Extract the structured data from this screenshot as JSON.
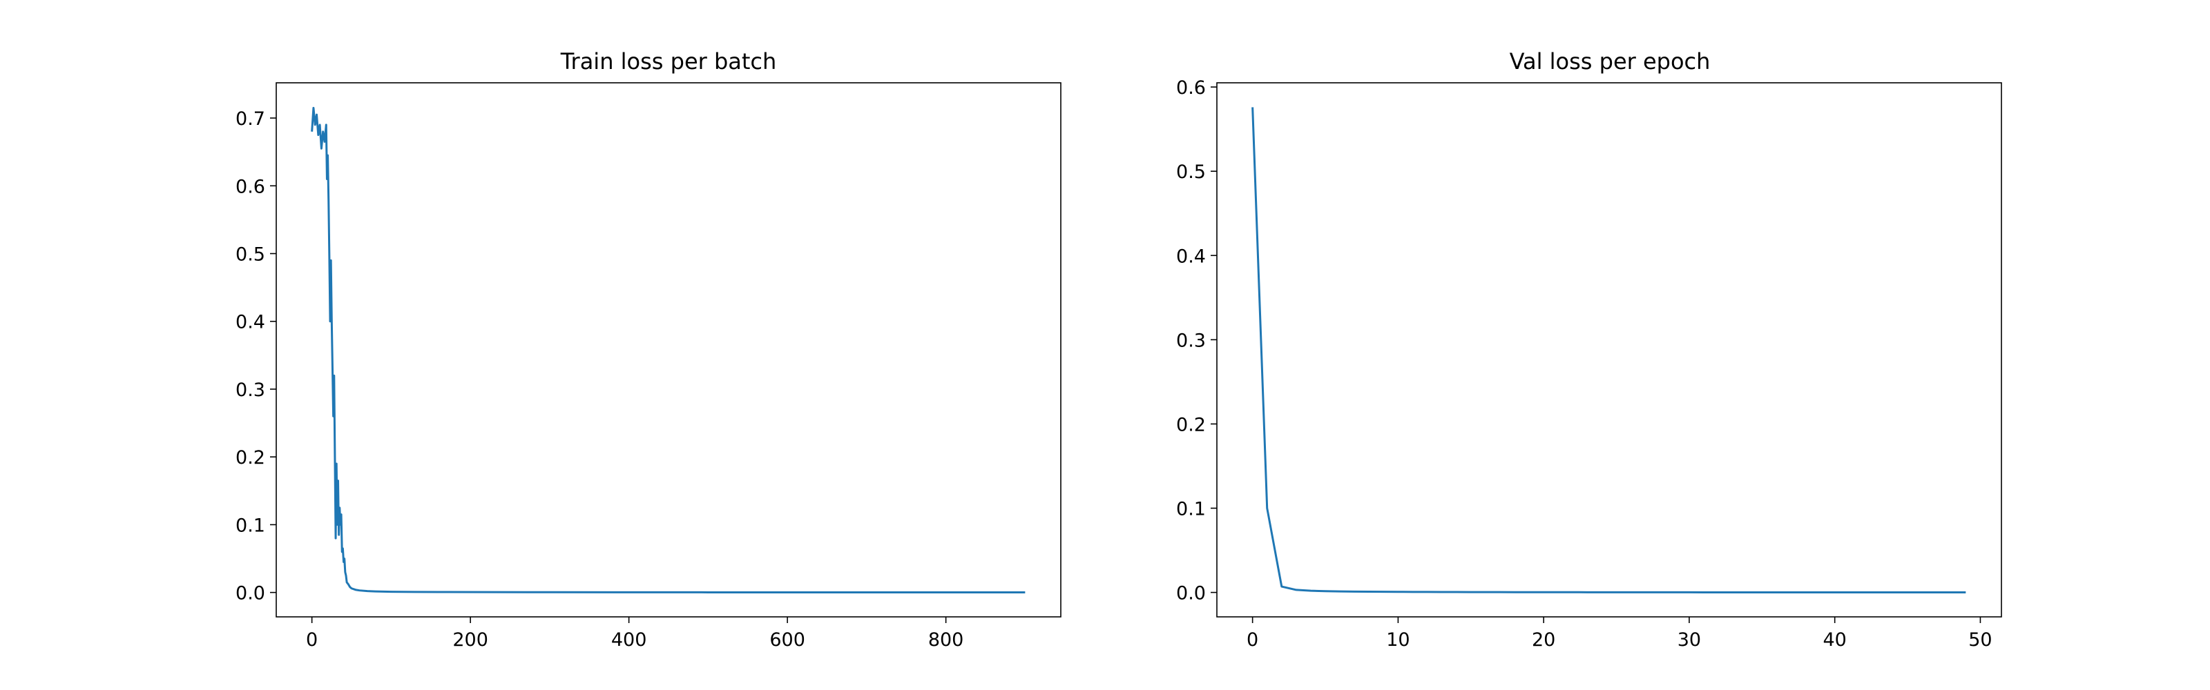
{
  "figure": {
    "background": "#ffffff",
    "line_color": "#1f77b4"
  },
  "chart_data": [
    {
      "type": "line",
      "title": "Train loss per batch",
      "xlabel": "",
      "ylabel": "",
      "xlim": [
        -45,
        945
      ],
      "ylim": [
        -0.036,
        0.752
      ],
      "xticks": [
        0,
        200,
        400,
        600,
        800
      ],
      "xtick_labels": [
        "0",
        "200",
        "400",
        "600",
        "800"
      ],
      "yticks": [
        0.0,
        0.1,
        0.2,
        0.3,
        0.4,
        0.5,
        0.6,
        0.7
      ],
      "ytick_labels": [
        "0.0",
        "0.1",
        "0.2",
        "0.3",
        "0.4",
        "0.5",
        "0.6",
        "0.7"
      ],
      "grid": false,
      "legend": "none",
      "series": [
        {
          "color": "#1f77b4",
          "x": [
            0,
            2,
            4,
            6,
            8,
            10,
            12,
            14,
            16,
            18,
            19,
            20,
            21,
            22,
            23,
            24,
            25,
            26,
            27,
            28,
            29,
            30,
            31,
            32,
            33,
            34,
            35,
            36,
            37,
            38,
            39,
            40,
            41,
            42,
            43,
            44,
            46,
            48,
            50,
            55,
            60,
            70,
            80,
            100,
            130,
            170,
            220,
            300,
            400,
            500,
            600,
            700,
            800,
            900
          ],
          "y": [
            0.68,
            0.715,
            0.69,
            0.705,
            0.675,
            0.69,
            0.655,
            0.68,
            0.665,
            0.69,
            0.61,
            0.645,
            0.58,
            0.495,
            0.4,
            0.49,
            0.4,
            0.33,
            0.26,
            0.32,
            0.2,
            0.08,
            0.19,
            0.1,
            0.165,
            0.085,
            0.125,
            0.1,
            0.115,
            0.06,
            0.065,
            0.045,
            0.05,
            0.03,
            0.025,
            0.015,
            0.012,
            0.008,
            0.006,
            0.004,
            0.003,
            0.002,
            0.0015,
            0.001,
            0.0008,
            0.0006,
            0.0005,
            0.0004,
            0.0003,
            0.0002,
            0.0002,
            0.0001,
            0.0001,
            0.0001
          ]
        }
      ]
    },
    {
      "type": "line",
      "title": "Val loss per epoch",
      "xlabel": "",
      "ylabel": "",
      "xlim": [
        -2.45,
        51.45
      ],
      "ylim": [
        -0.029,
        0.605
      ],
      "xticks": [
        0,
        10,
        20,
        30,
        40,
        50
      ],
      "xtick_labels": [
        "0",
        "10",
        "20",
        "30",
        "40",
        "50"
      ],
      "yticks": [
        0.0,
        0.1,
        0.2,
        0.3,
        0.4,
        0.5,
        0.6
      ],
      "ytick_labels": [
        "0.0",
        "0.1",
        "0.2",
        "0.3",
        "0.4",
        "0.5",
        "0.6"
      ],
      "grid": false,
      "legend": "none",
      "series": [
        {
          "color": "#1f77b4",
          "x": [
            0,
            1,
            2,
            3,
            4,
            5,
            6,
            7,
            8,
            9,
            10,
            11,
            12,
            13,
            14,
            15,
            16,
            17,
            18,
            19,
            20,
            21,
            22,
            23,
            24,
            25,
            26,
            27,
            28,
            29,
            30,
            31,
            32,
            33,
            34,
            35,
            36,
            37,
            38,
            39,
            40,
            41,
            42,
            43,
            44,
            45,
            46,
            47,
            48,
            49
          ],
          "y": [
            0.576,
            0.1,
            0.007,
            0.003,
            0.002,
            0.0015,
            0.0012,
            0.001,
            0.0009,
            0.0008,
            0.0007,
            0.0006,
            0.0006,
            0.0005,
            0.0005,
            0.0004,
            0.0004,
            0.0004,
            0.0003,
            0.0003,
            0.0003,
            0.0003,
            0.0003,
            0.0002,
            0.0002,
            0.0002,
            0.0002,
            0.0002,
            0.0002,
            0.0002,
            0.0002,
            0.0001,
            0.0001,
            0.0001,
            0.0001,
            0.0001,
            0.0001,
            0.0001,
            0.0001,
            0.0001,
            0.0001,
            0.0001,
            0.0001,
            0.0001,
            0.0001,
            0.0001,
            0.0001,
            0.0001,
            0.0001,
            0.0001
          ]
        }
      ]
    }
  ]
}
